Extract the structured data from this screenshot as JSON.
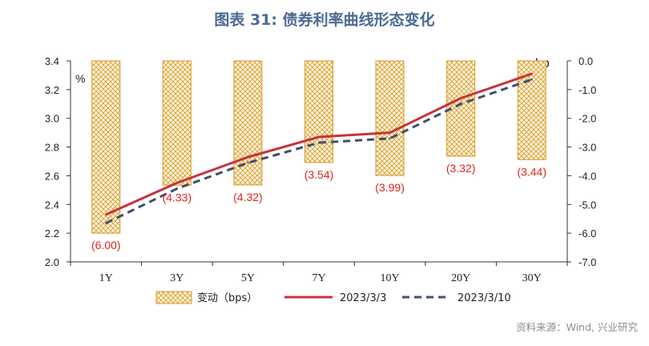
{
  "title": "图表 31: 债券利率曲线形态变化",
  "source": "资料来源：Wind, 兴业研究",
  "colors": {
    "bar_stroke": "#d89a2a",
    "bar_fill": "#fff4dc",
    "line_current": "#c8323a",
    "line_prev": "#3f4f6b",
    "label": "#e0251b",
    "title": "#4a6a95"
  },
  "chart_data": {
    "type": "bar+line",
    "categories": [
      "1Y",
      "3Y",
      "5Y",
      "7Y",
      "10Y",
      "20Y",
      "30Y"
    ],
    "left_axis": {
      "unit": "%",
      "ylim": [
        2.0,
        3.4
      ],
      "ticks": [
        "2.0",
        "2.2",
        "2.4",
        "2.6",
        "2.8",
        "3.0",
        "3.2",
        "3.4"
      ]
    },
    "right_axis": {
      "unit": "bp",
      "ylim": [
        -7.0,
        0.0
      ],
      "ticks": [
        "-7.0",
        "-6.0",
        "-5.0",
        "-4.0",
        "-3.0",
        "-2.0",
        "-1.0",
        "0.0"
      ]
    },
    "bars": {
      "name": "变动（bps）",
      "axis": "right",
      "values": [
        -6.0,
        -4.33,
        -4.32,
        -3.54,
        -3.99,
        -3.32,
        -3.44
      ],
      "labels": [
        "(6.00)",
        "(4.33)",
        "(4.32)",
        "(3.54)",
        "(3.99)",
        "(3.32)",
        "(3.44)"
      ]
    },
    "series": [
      {
        "name": "2023/3/3",
        "axis": "left",
        "style": "solid",
        "values": [
          2.33,
          2.55,
          2.73,
          2.87,
          2.9,
          3.14,
          3.31
        ]
      },
      {
        "name": "2023/3/10",
        "axis": "left",
        "style": "dashed",
        "values": [
          2.27,
          2.51,
          2.69,
          2.83,
          2.86,
          3.1,
          3.27
        ]
      }
    ],
    "legend": "bottom"
  }
}
